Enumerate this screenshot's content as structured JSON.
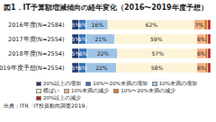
{
  "chart_data": {
    "type": "bar",
    "title": "図1．IT予算額増減傾向の経年変化（2016〜2019年度予想）",
    "source": "出典：ITR「IT投資動向調査2019」",
    "orientation": "horizontal",
    "stacked": true,
    "data_labels": true,
    "tick_labels": "y",
    "grid": false,
    "legend": "bottom",
    "categories": [
      "2016年度(N=2584)",
      "2017年度(N=2554)",
      "2018年度(N=2554)",
      "2019年度予想(N=2554)"
    ],
    "xlim": [
      0,
      100
    ],
    "xticks": [],
    "series": [
      {
        "name": "20%以上の増加",
        "color": "#1f3a6e",
        "values": [
          5,
          5,
          5,
          5
        ],
        "value_labels": [
          "5%",
          "5%",
          "5%",
          "5%"
        ]
      },
      {
        "name": "10%〜20%未満の増加",
        "color": "#2e6fb5",
        "values": [
          5,
          5,
          6,
          5
        ],
        "value_labels": [
          "5%",
          "5%",
          "6%",
          "5%"
        ]
      },
      {
        "name": "10%未満の増加",
        "color": "#9dc3e6",
        "values": [
          16,
          21,
          22,
          22
        ],
        "value_labels": [
          "16%",
          "21%",
          "22%",
          "22%"
        ]
      },
      {
        "name": "横ばい",
        "color": "#fdf3d6",
        "values": [
          62,
          59,
          57,
          58
        ],
        "value_labels": [
          "62%",
          "59%",
          "57%",
          "58%"
        ]
      },
      {
        "name": "10%未満の減少",
        "color": "#f4b183",
        "values": [
          7,
          6,
          6,
          6
        ],
        "value_labels": [
          "7%",
          "6%",
          "6%",
          "6%"
        ]
      },
      {
        "name": "10%〜20%未満の減少",
        "color": "#e07b2a",
        "values": [
          3,
          2,
          2,
          2
        ],
        "value_labels": [
          null,
          null,
          null,
          null
        ]
      },
      {
        "name": "20%以上の減少",
        "color": "#b22222",
        "values": [
          2,
          2,
          2,
          2
        ],
        "value_labels": [
          null,
          null,
          null,
          null
        ]
      }
    ]
  }
}
